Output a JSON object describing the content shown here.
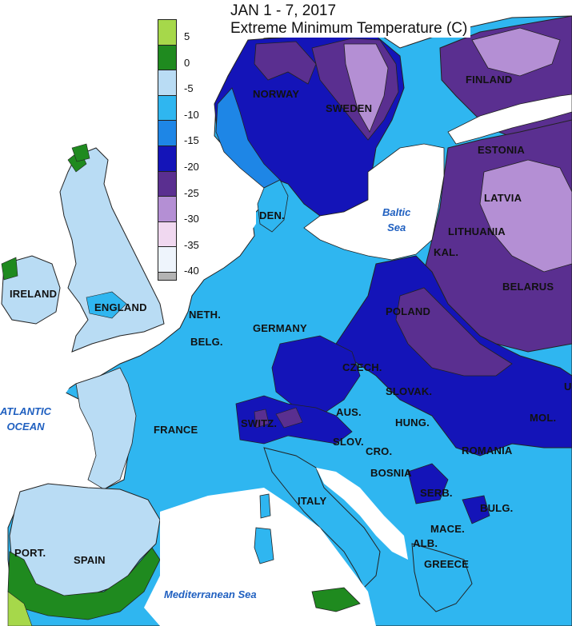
{
  "title": {
    "line1": "JAN 1 - 7, 2017",
    "line2": "Extreme Minimum Temperature (C)"
  },
  "legend": {
    "colors": [
      "#a6d84a",
      "#1f8a1f",
      "#b9dcf4",
      "#2fb6f0",
      "#1e86e6",
      "#1414b8",
      "#5a2f90",
      "#b48fd4",
      "#f0d8f0",
      "#eef4fc",
      "#b3b3b3"
    ],
    "labels": [
      "5",
      "0",
      "-5",
      "-10",
      "-15",
      "-20",
      "-25",
      "-30",
      "-35",
      "-40"
    ]
  },
  "countries": {
    "norway": "NORWAY",
    "sweden": "SWEDEN",
    "finland": "FINLAND",
    "estonia": "ESTONIA",
    "latvia": "LATVIA",
    "lithuania": "LITHUANIA",
    "kal": "KAL.",
    "belarus": "BELARUS",
    "den": "DEN.",
    "ireland": "IRELAND",
    "england": "ENGLAND",
    "neth": "NETH.",
    "belg": "BELG.",
    "germany": "GERMANY",
    "poland": "POLAND",
    "czech": "CZECH.",
    "slovak": "SLOVAK.",
    "ukr": "U",
    "aus": "AUS.",
    "switz": "SWITZ.",
    "france": "FRANCE",
    "hung": "HUNG.",
    "mol": "MOL.",
    "slov": "SLOV.",
    "cro": "CRO.",
    "romania": "ROMANIA",
    "bosnia": "BOSNIA",
    "serb": "SERB.",
    "bulg": "BULG.",
    "italy": "ITALY",
    "mace": "MACE.",
    "alb": "ALB.",
    "greece": "GREECE",
    "port": "PORT.",
    "spain": "SPAIN"
  },
  "water": {
    "baltic": "Baltic\nSea",
    "atlantic": "ATLANTIC\nOCEAN",
    "med": "Mediterranean Sea"
  }
}
